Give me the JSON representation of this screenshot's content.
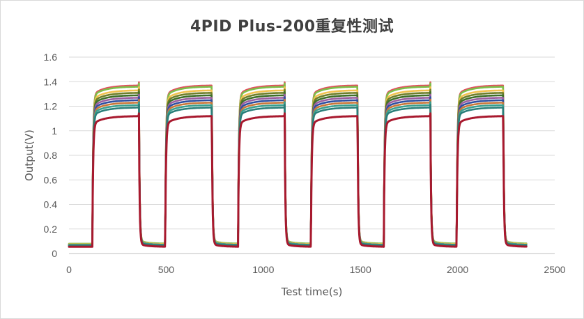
{
  "chart_data": {
    "type": "line",
    "title": "4PID Plus-200重复性测试",
    "xlabel": "Test time(s)",
    "ylabel": "Output(V)",
    "xlim": [
      0,
      2500
    ],
    "ylim": [
      0,
      1.6
    ],
    "x_ticks": [
      "0",
      "500",
      "1000",
      "1500",
      "2000",
      "2500"
    ],
    "y_ticks": [
      "0",
      "0.2",
      "0.4",
      "0.6",
      "0.8",
      "1",
      "1.2",
      "1.4",
      "1.6"
    ],
    "grid": "horizontal",
    "legend": "none",
    "pulses": {
      "on_times": [
        120,
        495,
        870,
        1245,
        1620,
        1995
      ],
      "duration": 240,
      "baseline": 0.07,
      "end_time": 2355
    },
    "series": [
      {
        "color": "#e0525e",
        "plateau": 1.37,
        "baseline": 0.075
      },
      {
        "color": "#7fbf4a",
        "plateau": 1.36,
        "baseline": 0.08
      },
      {
        "color": "#f2c14e",
        "plateau": 1.33,
        "baseline": 0.075
      },
      {
        "color": "#6f7f2a",
        "plateau": 1.31,
        "baseline": 0.07
      },
      {
        "color": "#3f6f2a",
        "plateau": 1.29,
        "baseline": 0.07
      },
      {
        "color": "#9b5fa0",
        "plateau": 1.27,
        "baseline": 0.07
      },
      {
        "color": "#2f4fa0",
        "plateau": 1.25,
        "baseline": 0.065
      },
      {
        "color": "#c9783a",
        "plateau": 1.23,
        "baseline": 0.065
      },
      {
        "color": "#3aa08f",
        "plateau": 1.21,
        "baseline": 0.07
      },
      {
        "color": "#2a7f7a",
        "plateau": 1.19,
        "baseline": 0.065
      },
      {
        "color": "#a8192e",
        "plateau": 1.12,
        "baseline": 0.055
      }
    ]
  }
}
